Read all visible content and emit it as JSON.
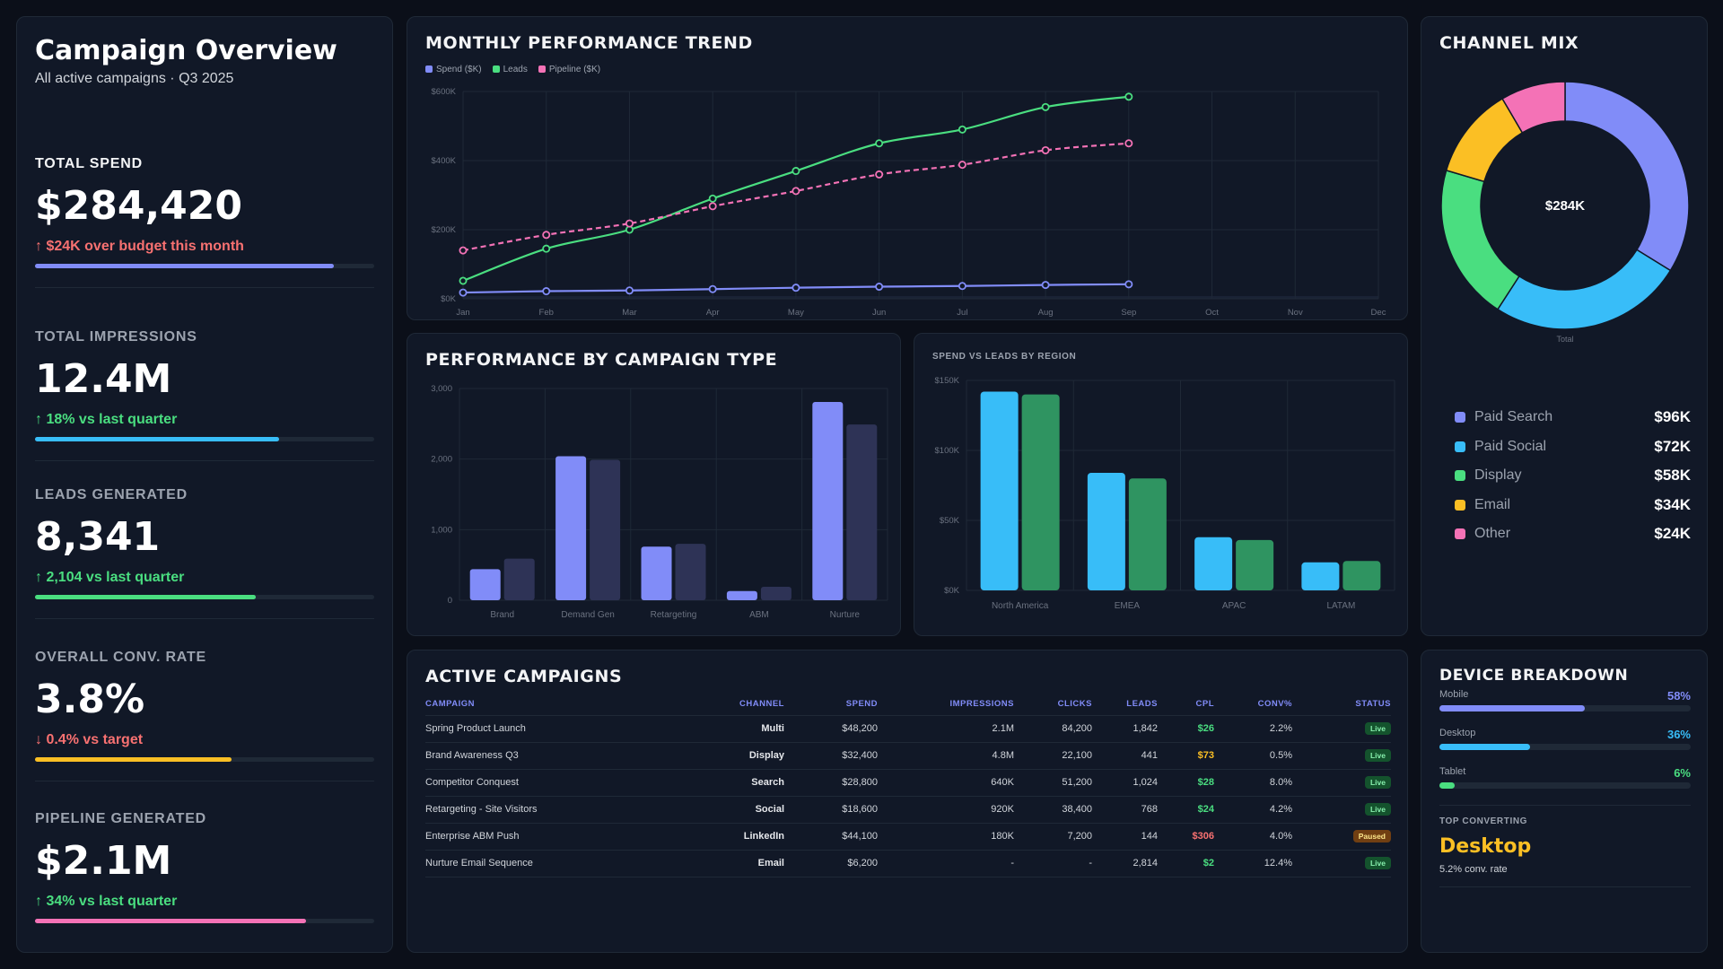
{
  "header": {
    "title": "Campaign Overview",
    "subtitle": "All active campaigns · Q3 2025"
  },
  "kpis": [
    {
      "label": "TOTAL SPEND",
      "value": "$284,420",
      "change": "↑ $24K over budget this month",
      "color": "#818cf8",
      "change_color": "#f87171",
      "progress": 0.88
    },
    {
      "label": "TOTAL IMPRESSIONS",
      "value": "12.4M",
      "change": "↑ 18% vs last quarter",
      "color": "#38bdf8",
      "change_color": "#4ade80",
      "progress": 0.72
    },
    {
      "label": "LEADS GENERATED",
      "value": "8,341",
      "change": "↑ 2,104 vs last quarter",
      "color": "#4ade80",
      "change_color": "#4ade80",
      "progress": 0.65
    },
    {
      "label": "OVERALL CONV. RATE",
      "value": "3.8%",
      "change": "↓ 0.4% vs target",
      "color": "#fbbf24",
      "change_color": "#f87171",
      "progress": 0.58
    },
    {
      "label": "PIPELINE GENERATED",
      "value": "$2.1M",
      "change": "↑ 34% vs last quarter",
      "color": "#f472b6",
      "change_color": "#4ade80",
      "progress": 0.8
    }
  ],
  "trend": {
    "title": "MONTHLY PERFORMANCE TREND",
    "legend": [
      "Spend ($K)",
      "Leads",
      "Pipeline ($K)"
    ]
  },
  "ctype": {
    "title": "PERFORMANCE BY CAMPAIGN TYPE"
  },
  "region": {
    "title": "SPEND VS LEADS BY REGION"
  },
  "mix": {
    "title": "CHANNEL MIX",
    "center": "$284K",
    "total_label": "Total",
    "items": [
      {
        "name": "Paid Search",
        "value": "$96K",
        "color": "#818cf8"
      },
      {
        "name": "Paid Social",
        "value": "$72K",
        "color": "#38bdf8"
      },
      {
        "name": "Display",
        "value": "$58K",
        "color": "#4ade80"
      },
      {
        "name": "Email",
        "value": "$34K",
        "color": "#fbbf24"
      },
      {
        "name": "Other",
        "value": "$24K",
        "color": "#f472b6"
      }
    ]
  },
  "campaigns": {
    "title": "ACTIVE CAMPAIGNS",
    "columns": [
      "CAMPAIGN",
      "CHANNEL",
      "SPEND",
      "IMPRESSIONS",
      "CLICKS",
      "LEADS",
      "CPL",
      "CONV%",
      "STATUS"
    ],
    "rows": [
      {
        "name": "Spring Product Launch",
        "channel": "Multi",
        "spend": "$48,200",
        "impressions": "2.1M",
        "clicks": "84,200",
        "leads": "1,842",
        "cpl": "$26",
        "cpl_color": "#4ade80",
        "conv": "2.2%",
        "status": "Live"
      },
      {
        "name": "Brand Awareness Q3",
        "channel": "Display",
        "spend": "$32,400",
        "impressions": "4.8M",
        "clicks": "22,100",
        "leads": "441",
        "cpl": "$73",
        "cpl_color": "#fbbf24",
        "conv": "0.5%",
        "status": "Live"
      },
      {
        "name": "Competitor Conquest",
        "channel": "Search",
        "spend": "$28,800",
        "impressions": "640K",
        "clicks": "51,200",
        "leads": "1,024",
        "cpl": "$28",
        "cpl_color": "#4ade80",
        "conv": "8.0%",
        "status": "Live"
      },
      {
        "name": "Retargeting - Site Visitors",
        "channel": "Social",
        "spend": "$18,600",
        "impressions": "920K",
        "clicks": "38,400",
        "leads": "768",
        "cpl": "$24",
        "cpl_color": "#4ade80",
        "conv": "4.2%",
        "status": "Live"
      },
      {
        "name": "Enterprise ABM Push",
        "channel": "LinkedIn",
        "spend": "$44,100",
        "impressions": "180K",
        "clicks": "7,200",
        "leads": "144",
        "cpl": "$306",
        "cpl_color": "#f87171",
        "conv": "4.0%",
        "status": "Paused"
      },
      {
        "name": "Nurture Email Sequence",
        "channel": "Email",
        "spend": "$6,200",
        "impressions": "-",
        "clicks": "-",
        "leads": "2,814",
        "cpl": "$2",
        "cpl_color": "#4ade80",
        "conv": "12.4%",
        "status": "Live"
      }
    ]
  },
  "device": {
    "title": "DEVICE BREAKDOWN",
    "items": [
      {
        "name": "Mobile",
        "pct": "58%",
        "value": 0.58,
        "color": "#818cf8"
      },
      {
        "name": "Desktop",
        "pct": "36%",
        "value": 0.36,
        "color": "#38bdf8"
      },
      {
        "name": "Tablet",
        "pct": "6%",
        "value": 0.06,
        "color": "#4ade80"
      }
    ],
    "top_label": "TOP CONVERTING",
    "top_value": "Desktop",
    "top_sub": "5.2% conv. rate"
  },
  "chart_data": [
    {
      "type": "line",
      "title": "MONTHLY PERFORMANCE TREND",
      "x": [
        "Jan",
        "Feb",
        "Mar",
        "Apr",
        "May",
        "Jun",
        "Jul",
        "Aug",
        "Sep",
        "Oct",
        "Nov",
        "Dec"
      ],
      "yticks": [
        "$0K",
        "$200K",
        "$400K",
        "$600K"
      ],
      "ylim": [
        0,
        600
      ],
      "series": [
        {
          "name": "Spend ($K)",
          "color": "#818cf8",
          "dashed": false,
          "values": [
            18,
            22,
            24,
            28,
            32,
            35,
            37,
            40,
            42,
            null,
            null,
            null
          ]
        },
        {
          "name": "Leads",
          "color": "#4ade80",
          "dashed": false,
          "values": [
            52,
            145,
            200,
            290,
            370,
            450,
            490,
            555,
            585,
            null,
            null,
            null
          ]
        },
        {
          "name": "Pipeline ($K)",
          "color": "#f472b6",
          "dashed": true,
          "values": [
            140,
            185,
            218,
            268,
            312,
            360,
            388,
            430,
            450,
            null,
            null,
            null
          ]
        }
      ],
      "grid": true,
      "legend": "top-left"
    },
    {
      "type": "bar",
      "title": "PERFORMANCE BY CAMPAIGN TYPE",
      "categories": [
        "Brand",
        "Demand Gen",
        "Retargeting",
        "ABM",
        "Nurture"
      ],
      "yticks": [
        "0",
        "1,000",
        "2,000",
        "3,000"
      ],
      "ylim": [
        0,
        3000
      ],
      "series": [
        {
          "color": "#818cf8",
          "values": [
            440,
            2040,
            760,
            130,
            2810
          ]
        },
        {
          "color": "#2e3356",
          "values": [
            590,
            1990,
            800,
            190,
            2490
          ]
        }
      ]
    },
    {
      "type": "bar",
      "title": "SPEND VS LEADS BY REGION",
      "categories": [
        "North America",
        "EMEA",
        "APAC",
        "LATAM"
      ],
      "yticks": [
        "$0K",
        "$50K",
        "$100K",
        "$150K"
      ],
      "ylim": [
        0,
        150
      ],
      "series": [
        {
          "color": "#38bdf8",
          "values": [
            142,
            84,
            38,
            20
          ]
        },
        {
          "color": "#2f9461",
          "values": [
            140,
            80,
            36,
            21
          ]
        }
      ]
    },
    {
      "type": "pie",
      "title": "CHANNEL MIX",
      "categories": [
        "Paid Search",
        "Paid Social",
        "Display",
        "Email",
        "Other"
      ],
      "values": [
        96,
        72,
        58,
        34,
        24
      ],
      "colors": [
        "#818cf8",
        "#38bdf8",
        "#4ade80",
        "#fbbf24",
        "#f472b6"
      ]
    }
  ]
}
